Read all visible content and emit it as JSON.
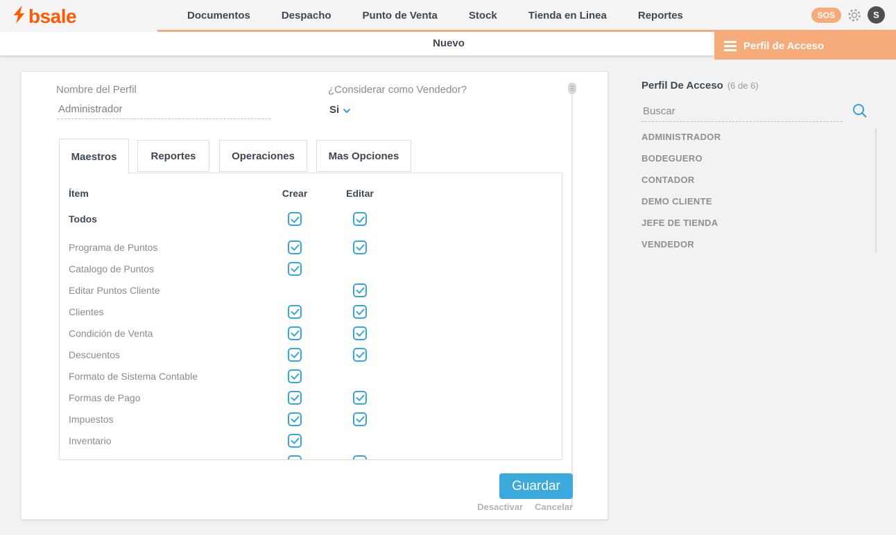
{
  "brand": {
    "name": "bsale"
  },
  "nav": {
    "items": [
      "Documentos",
      "Despacho",
      "Punto de Venta",
      "Stock",
      "Tienda en Linea",
      "Reportes"
    ],
    "sos_label": "SOS",
    "avatar_initial": "S"
  },
  "subnav": {
    "new_label": "Nuevo",
    "active_section": "Perfil de Acceso"
  },
  "form": {
    "name_label": "Nombre del Perfil",
    "name_value": "Administrador",
    "vendor_label": "¿Considerar como Vendedor?",
    "vendor_value": "Si",
    "tabs": [
      {
        "label": "Maestros",
        "active": true
      },
      {
        "label": "Reportes",
        "active": false
      },
      {
        "label": "Operaciones",
        "active": false
      },
      {
        "label": "Mas Opciones",
        "active": false
      }
    ],
    "table": {
      "item_header": "Ítem",
      "create_header": "Crear",
      "edit_header": "Editar",
      "rows": [
        {
          "label": "Todos",
          "create": true,
          "edit": true
        },
        {
          "label": "Programa de Puntos",
          "create": true,
          "edit": true
        },
        {
          "label": "Catalogo de Puntos",
          "create": true,
          "edit": false
        },
        {
          "label": "Editar Puntos Cliente",
          "create": false,
          "edit": true
        },
        {
          "label": "Clientes",
          "create": true,
          "edit": true
        },
        {
          "label": "Condición de Venta",
          "create": true,
          "edit": true
        },
        {
          "label": "Descuentos",
          "create": true,
          "edit": true
        },
        {
          "label": "Formato de Sistema Contable",
          "create": true,
          "edit": false
        },
        {
          "label": "Formas de Pago",
          "create": true,
          "edit": true
        },
        {
          "label": "Impuestos",
          "create": true,
          "edit": true
        },
        {
          "label": "Inventario",
          "create": true,
          "edit": false
        },
        {
          "label": "",
          "create": true,
          "edit": true
        }
      ]
    },
    "save_label": "Guardar",
    "deactivate_label": "Desactivar",
    "cancel_label": "Cancelar"
  },
  "sidebar": {
    "title": "Perfil De Acceso",
    "count": "(6 de 6)",
    "search_placeholder": "Buscar",
    "items": [
      "ADMINISTRADOR",
      "BODEGUERO",
      "CONTADOR",
      "DEMO CLIENTE",
      "JEFE DE TIENDA",
      "VENDEDOR"
    ]
  },
  "colors": {
    "brand_orange": "#ff5a00",
    "accent_orange": "#f5ab7a",
    "checkbox_blue": "#36a6dc",
    "button_blue": "#3ca9dd",
    "icon_blue": "#2d9fd8",
    "dark_text": "#3d4852",
    "grey_text": "#8b8b8b"
  }
}
